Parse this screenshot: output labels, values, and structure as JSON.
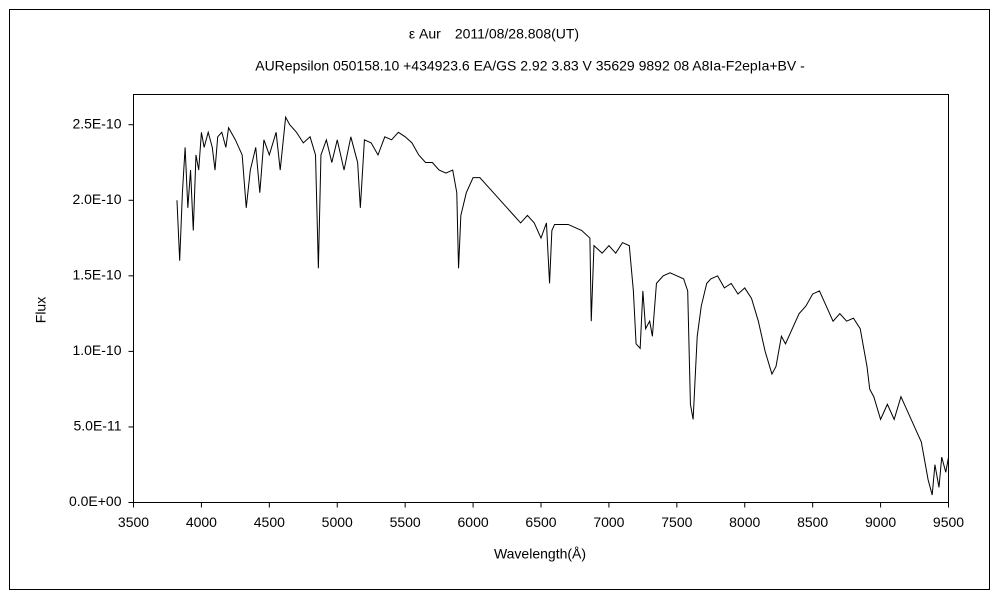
{
  "chart_data": {
    "type": "line",
    "title": "ε Aur　2011/08/28.808(UT)",
    "subtitle": "AURepsilon 050158.10 +434923.6 EA/GS 2.92 3.83 V 35629 9892 08 A8Ia-F2epIa+BV -",
    "x_label": "Wavelength(Å)",
    "y_label": "Flux",
    "color": "#000000",
    "xlim": [
      3500,
      9500
    ],
    "xticks": [
      3500,
      4000,
      4500,
      5000,
      5500,
      6000,
      6500,
      7000,
      7500,
      8000,
      8500,
      9000,
      9500
    ],
    "ylim": [
      0,
      2.7e-10
    ],
    "yticks": [
      {
        "value": 0,
        "label": "0.0E+00"
      },
      {
        "value": 5e-11,
        "label": "5.0E-11"
      },
      {
        "value": 1e-10,
        "label": "1.0E-10"
      },
      {
        "value": 1.5e-10,
        "label": "1.5E-10"
      },
      {
        "value": 2e-10,
        "label": "2.0E-10"
      },
      {
        "value": 2.5e-10,
        "label": "2.5E-10"
      }
    ],
    "x": [
      3820,
      3840,
      3860,
      3880,
      3900,
      3920,
      3940,
      3960,
      3980,
      4000,
      4020,
      4050,
      4080,
      4100,
      4120,
      4150,
      4180,
      4200,
      4250,
      4300,
      4330,
      4360,
      4400,
      4430,
      4460,
      4500,
      4550,
      4580,
      4620,
      4650,
      4700,
      4750,
      4800,
      4840,
      4861,
      4880,
      4920,
      4960,
      5000,
      5050,
      5100,
      5150,
      5170,
      5200,
      5250,
      5300,
      5350,
      5400,
      5450,
      5500,
      5550,
      5600,
      5650,
      5700,
      5750,
      5800,
      5850,
      5880,
      5893,
      5910,
      5950,
      6000,
      6050,
      6100,
      6150,
      6200,
      6250,
      6300,
      6350,
      6400,
      6450,
      6500,
      6540,
      6563,
      6580,
      6600,
      6700,
      6800,
      6860,
      6870,
      6890,
      6950,
      7000,
      7050,
      7100,
      7150,
      7180,
      7200,
      7230,
      7250,
      7270,
      7300,
      7320,
      7350,
      7400,
      7450,
      7500,
      7550,
      7580,
      7600,
      7620,
      7650,
      7680,
      7720,
      7750,
      7800,
      7850,
      7900,
      7950,
      8000,
      8050,
      8100,
      8150,
      8200,
      8230,
      8270,
      8300,
      8350,
      8400,
      8450,
      8500,
      8550,
      8600,
      8650,
      8700,
      8750,
      8800,
      8850,
      8900,
      8920,
      8950,
      9000,
      9050,
      9100,
      9150,
      9200,
      9250,
      9300,
      9350,
      9380,
      9400,
      9430,
      9450,
      9480,
      9500
    ],
    "values": [
      2e-10,
      1.6e-10,
      2.05e-10,
      2.35e-10,
      1.95e-10,
      2.2e-10,
      1.8e-10,
      2.3e-10,
      2.2e-10,
      2.45e-10,
      2.35e-10,
      2.45e-10,
      2.35e-10,
      2.2e-10,
      2.42e-10,
      2.45e-10,
      2.35e-10,
      2.48e-10,
      2.4e-10,
      2.3e-10,
      1.95e-10,
      2.2e-10,
      2.35e-10,
      2.05e-10,
      2.4e-10,
      2.3e-10,
      2.45e-10,
      2.2e-10,
      2.55e-10,
      2.5e-10,
      2.45e-10,
      2.38e-10,
      2.42e-10,
      2.3e-10,
      1.55e-10,
      2.3e-10,
      2.4e-10,
      2.25e-10,
      2.4e-10,
      2.2e-10,
      2.42e-10,
      2.25e-10,
      1.95e-10,
      2.4e-10,
      2.38e-10,
      2.3e-10,
      2.42e-10,
      2.4e-10,
      2.45e-10,
      2.42e-10,
      2.38e-10,
      2.3e-10,
      2.25e-10,
      2.25e-10,
      2.2e-10,
      2.18e-10,
      2.2e-10,
      2.05e-10,
      1.55e-10,
      1.9e-10,
      2.05e-10,
      2.15e-10,
      2.15e-10,
      2.1e-10,
      2.05e-10,
      2e-10,
      1.95e-10,
      1.9e-10,
      1.85e-10,
      1.9e-10,
      1.85e-10,
      1.75e-10,
      1.85e-10,
      1.45e-10,
      1.8e-10,
      1.84e-10,
      1.84e-10,
      1.8e-10,
      1.75e-10,
      1.2e-10,
      1.7e-10,
      1.65e-10,
      1.7e-10,
      1.65e-10,
      1.72e-10,
      1.7e-10,
      1.4e-10,
      1.05e-10,
      1.02e-10,
      1.4e-10,
      1.15e-10,
      1.2e-10,
      1.1e-10,
      1.45e-10,
      1.5e-10,
      1.52e-10,
      1.5e-10,
      1.48e-10,
      1.4e-10,
      6.5e-11,
      5.5e-11,
      1.1e-10,
      1.3e-10,
      1.45e-10,
      1.48e-10,
      1.5e-10,
      1.42e-10,
      1.45e-10,
      1.38e-10,
      1.42e-10,
      1.35e-10,
      1.2e-10,
      1e-10,
      8.5e-11,
      9e-11,
      1.1e-10,
      1.05e-10,
      1.15e-10,
      1.25e-10,
      1.3e-10,
      1.38e-10,
      1.4e-10,
      1.3e-10,
      1.2e-10,
      1.25e-10,
      1.2e-10,
      1.22e-10,
      1.15e-10,
      9e-11,
      7.5e-11,
      7e-11,
      5.5e-11,
      6.5e-11,
      5.5e-11,
      7e-11,
      6e-11,
      5e-11,
      4e-11,
      1.5e-11,
      5e-12,
      2.5e-11,
      1e-11,
      3e-11,
      2e-11,
      3e-11
    ]
  }
}
